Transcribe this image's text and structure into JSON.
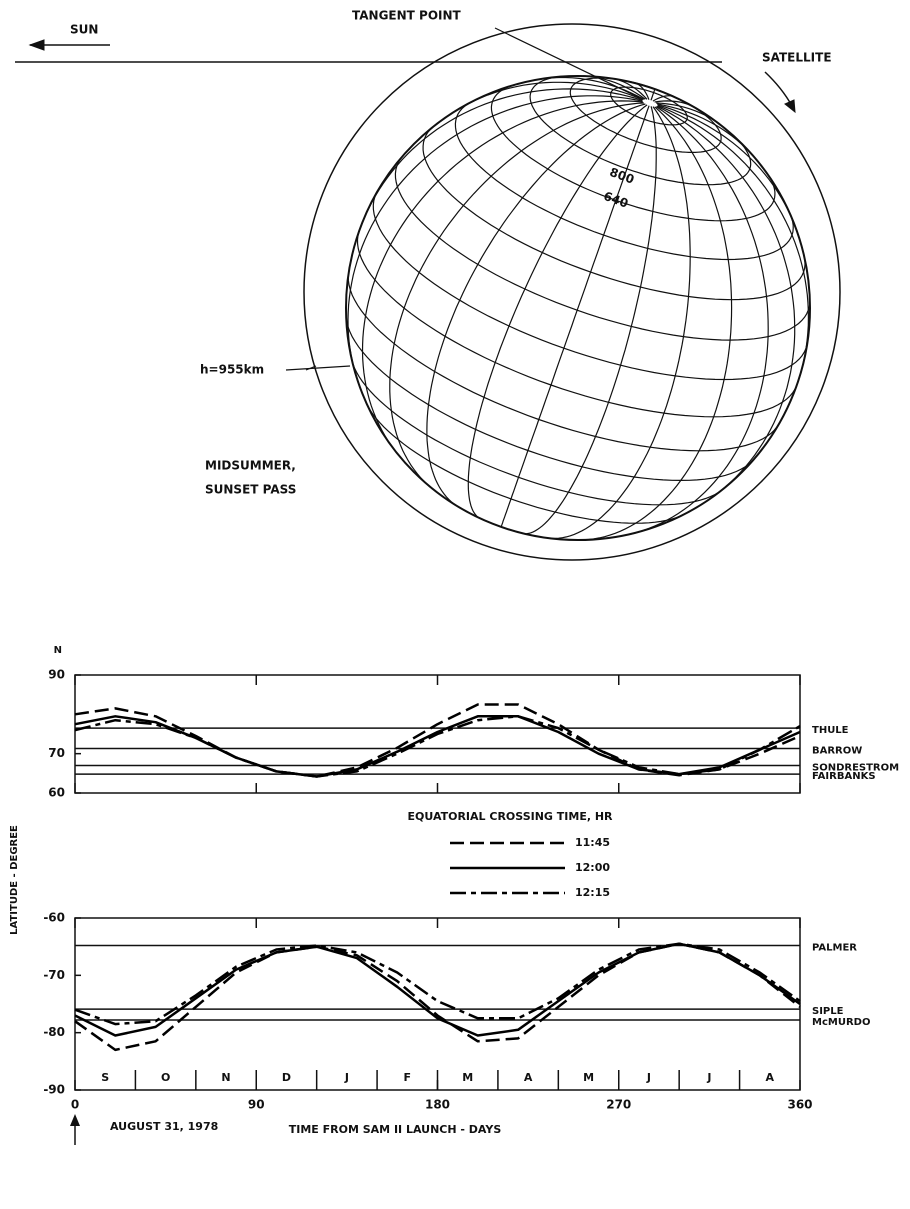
{
  "diagram": {
    "tangent_point": "TANGENT POINT",
    "sun": "SUN",
    "satellite": "SATELLITE",
    "contours": [
      "800",
      "640"
    ],
    "altitude": "h=955km",
    "caption": [
      "MIDSUMMER,",
      "SUNSET PASS"
    ]
  },
  "y_label": "LATITUDE - DEGREE",
  "legend_title": "EQUATORIAL CROSSING TIME, HR",
  "chart_data": [
    {
      "type": "line",
      "hemisphere_label": "N",
      "xlim": [
        0,
        360
      ],
      "ylim": [
        60,
        90
      ],
      "yticks": [
        60,
        70,
        90
      ],
      "x": [
        0,
        20,
        40,
        60,
        80,
        100,
        120,
        140,
        160,
        180,
        200,
        220,
        240,
        260,
        280,
        300,
        320,
        340,
        360
      ],
      "series": [
        {
          "name": "11:45",
          "color": "#000000",
          "line_style": "dashed",
          "values": [
            80,
            81.5,
            79.5,
            74.5,
            69,
            65.5,
            64.2,
            66.5,
            71.5,
            77.5,
            82.5,
            82.5,
            77.5,
            71,
            66,
            64.5,
            66,
            70,
            74.5
          ]
        },
        {
          "name": "12:00",
          "color": "#000000",
          "line_style": "solid",
          "values": [
            77.5,
            79.5,
            78,
            74,
            69,
            65.5,
            64.2,
            66,
            70.5,
            75.5,
            79.5,
            79.5,
            75.5,
            70,
            66,
            64.8,
            66.5,
            71,
            75.5
          ]
        },
        {
          "name": "12:15",
          "color": "#000000",
          "line_style": "dash-dot",
          "values": [
            76,
            78.5,
            77.5,
            74,
            69,
            65.5,
            64.2,
            65.5,
            70,
            75,
            78.5,
            79.5,
            76.5,
            71,
            66.5,
            64.8,
            66,
            71,
            77
          ]
        }
      ],
      "reference_lines": [
        {
          "name": "THULE",
          "value": 76.5
        },
        {
          "name": "BARROW",
          "value": 71.3
        },
        {
          "name": "SONDRESTROM",
          "value": 67
        },
        {
          "name": "FAIRBANKS",
          "value": 64.8
        }
      ]
    },
    {
      "type": "line",
      "xlim": [
        0,
        360
      ],
      "ylim": [
        -90,
        -60
      ],
      "yticks": [
        -90,
        -80,
        -70,
        -60
      ],
      "xticks": [
        0,
        90,
        180,
        270,
        360
      ],
      "x_label": "TIME FROM SAM II LAUNCH - DAYS",
      "start_date": "AUGUST 31, 1978",
      "month_labels": [
        "S",
        "O",
        "N",
        "D",
        "J",
        "F",
        "M",
        "A",
        "M",
        "J",
        "J",
        "A"
      ],
      "x": [
        0,
        20,
        40,
        60,
        80,
        100,
        120,
        140,
        160,
        180,
        200,
        220,
        240,
        260,
        280,
        300,
        320,
        340,
        360
      ],
      "series": [
        {
          "color": "#000000",
          "line_style": "dashed",
          "values": [
            -78,
            -83,
            -81.5,
            -75.5,
            -69.5,
            -66,
            -65,
            -66.5,
            -71,
            -77,
            -81.5,
            -81,
            -75.5,
            -70,
            -66,
            -64.5,
            -66,
            -70,
            -75.5
          ]
        },
        {
          "color": "#000000",
          "line_style": "solid",
          "values": [
            -77,
            -80.5,
            -79,
            -74,
            -69,
            -66,
            -65,
            -67,
            -72,
            -77.5,
            -80.5,
            -79.5,
            -74.5,
            -69.5,
            -66,
            -64.5,
            -66,
            -70,
            -75
          ]
        },
        {
          "color": "#000000",
          "line_style": "dash-dot",
          "values": [
            -76,
            -78.5,
            -78,
            -73.5,
            -68.5,
            -65.5,
            -64.8,
            -66,
            -69.5,
            -74.5,
            -77.5,
            -77.5,
            -74,
            -69,
            -65.5,
            -64.5,
            -65.5,
            -69.5,
            -74.5
          ]
        }
      ],
      "reference_lines": [
        {
          "name": "PALMER",
          "value": -64.8
        },
        {
          "name": "SIPLE",
          "value": -75.9
        },
        {
          "name": "McMURDO",
          "value": -77.8
        }
      ]
    }
  ]
}
